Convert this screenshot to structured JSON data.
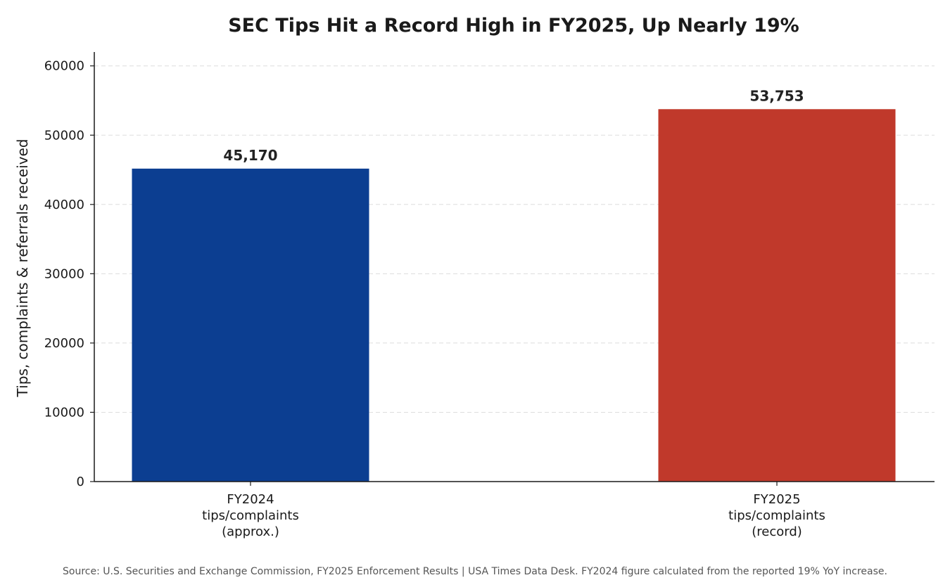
{
  "chart_data": {
    "type": "bar",
    "title": "SEC Tips Hit a Record High in FY2025, Up Nearly 19%",
    "xlabel": "",
    "ylabel": "Tips, complaints & referrals received",
    "categories": [
      [
        "FY2024",
        "tips/complaints",
        "(approx.)"
      ],
      [
        "FY2025",
        "tips/complaints",
        "(record)"
      ]
    ],
    "values": [
      45170,
      53753
    ],
    "value_labels": [
      "45,170",
      "53,753"
    ],
    "colors": [
      "#0c3e91",
      "#c0392b"
    ],
    "ylim": [
      0,
      62000
    ],
    "yticks": [
      0,
      10000,
      20000,
      30000,
      40000,
      50000,
      60000
    ],
    "grid": true,
    "legend": "none"
  },
  "footer": {
    "source": "Source: U.S. Securities and Exchange Commission, FY2025 Enforcement Results  |  USA Times Data Desk. FY2024 figure calculated from the reported 19% YoY increase."
  }
}
